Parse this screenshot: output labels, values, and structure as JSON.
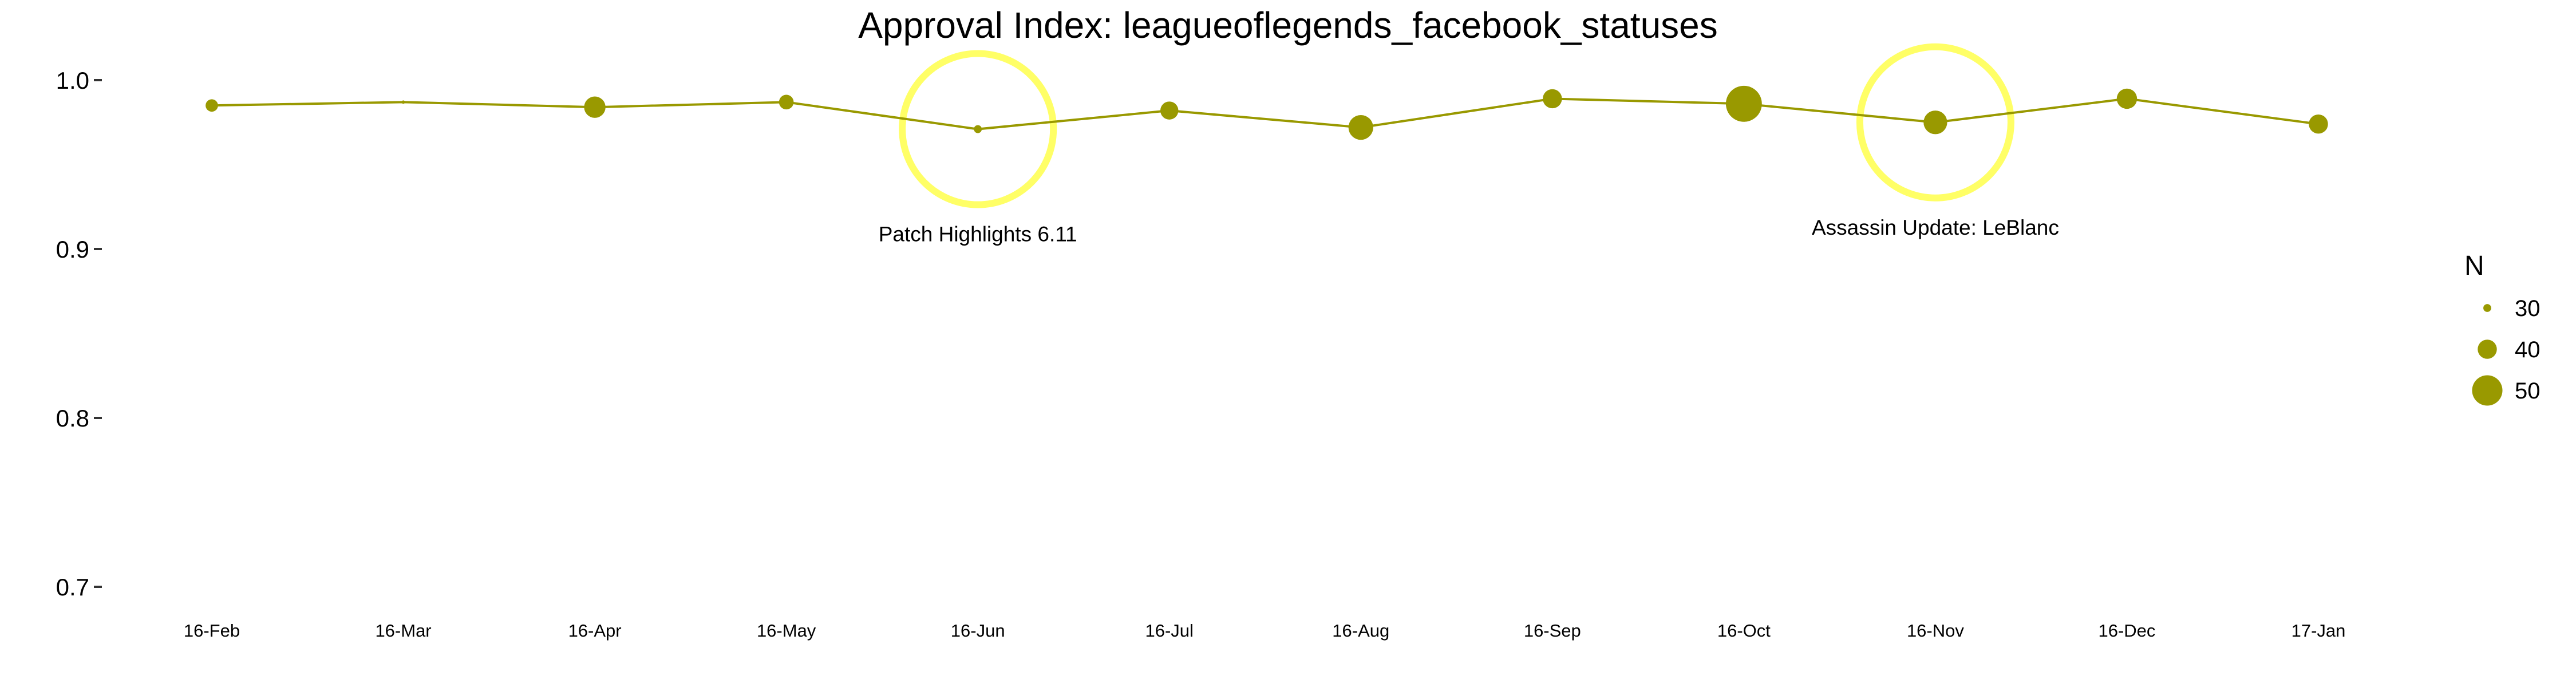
{
  "chart_data": {
    "type": "line",
    "title": "Approval Index: leagueoflegends_facebook_statuses",
    "xlabel": "",
    "ylabel": "",
    "ylim": [
      0.7,
      1.0
    ],
    "yticks": [
      "0.7",
      "0.8",
      "0.9",
      "1.0"
    ],
    "grid": false,
    "legend_position": "right",
    "colors": {
      "series": "#999900",
      "highlight": "#ffff66"
    },
    "x": [
      "16-Feb",
      "16-Mar",
      "16-Apr",
      "16-May",
      "16-Jun",
      "16-Jul",
      "16-Aug",
      "16-Sep",
      "16-Oct",
      "16-Nov",
      "16-Dec",
      "17-Jan"
    ],
    "series": [
      {
        "values": [
          0.985,
          0.987,
          0.984,
          0.987,
          0.971,
          0.982,
          0.972,
          0.989,
          0.986,
          0.975,
          0.989,
          0.974
        ],
        "n": [
          34,
          26,
          42,
          36,
          30,
          39,
          45,
          40,
          55,
          44,
          41,
          40
        ]
      }
    ],
    "size_legend": {
      "title": "N",
      "entries": [
        30,
        40,
        50
      ]
    },
    "annotations": [
      {
        "x": "16-Jun",
        "y": 0.971,
        "text": "Patch Highlights 6.11"
      },
      {
        "x": "16-Nov",
        "y": 0.975,
        "text": "Assassin Update: LeBlanc"
      }
    ]
  }
}
